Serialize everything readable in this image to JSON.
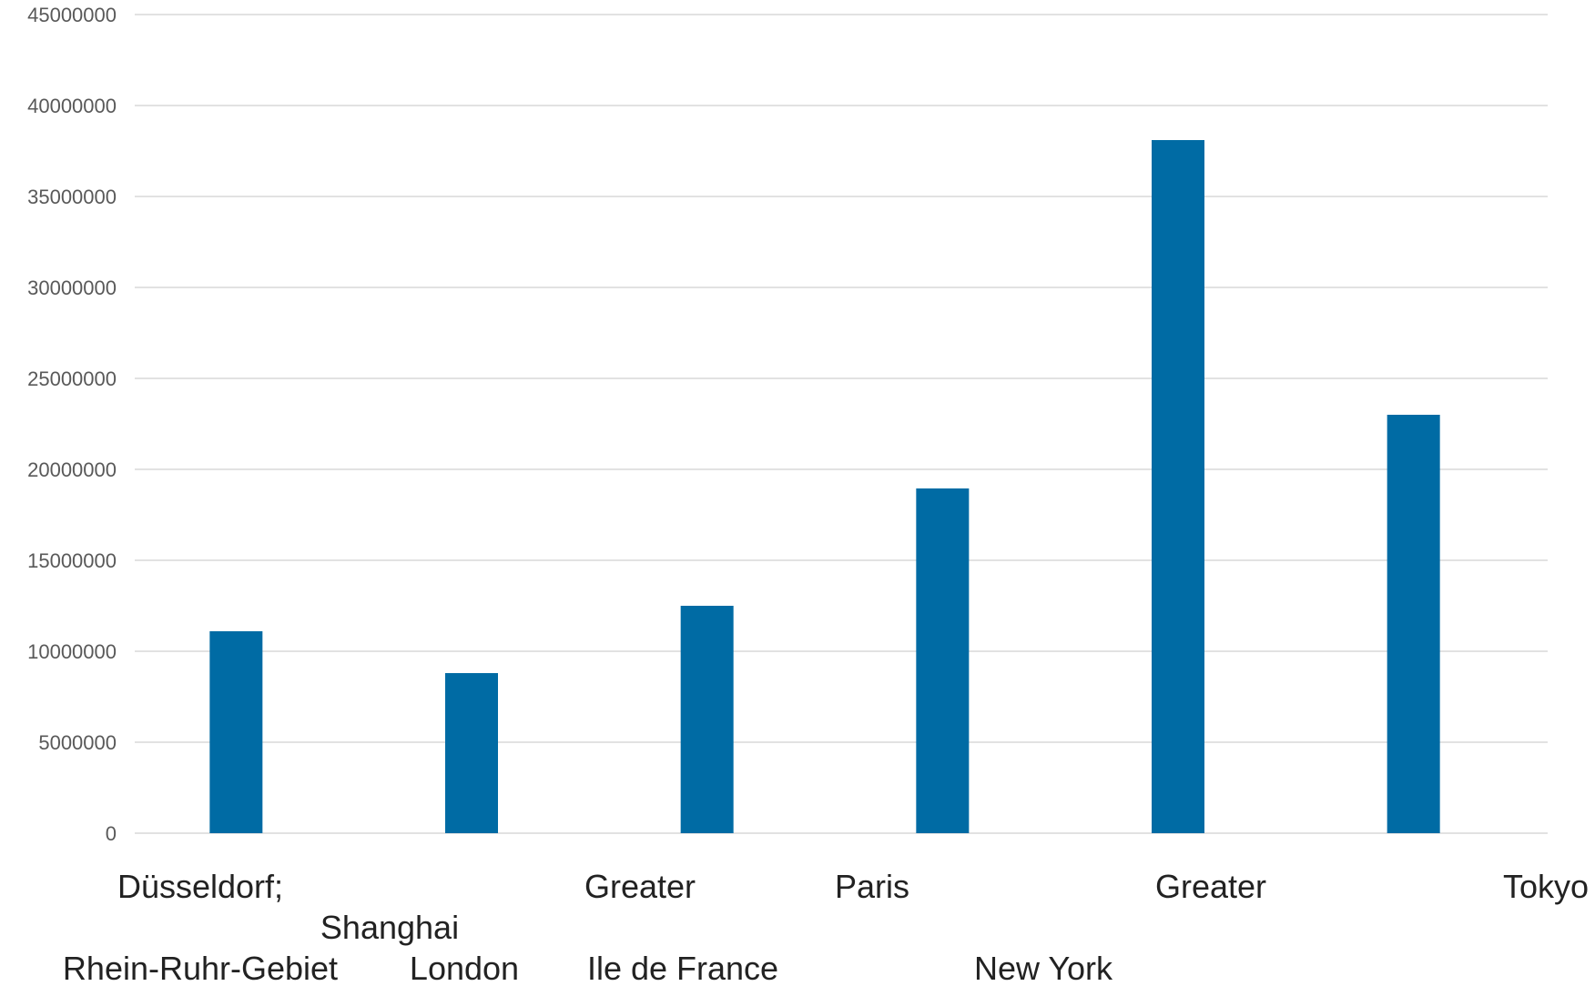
{
  "chart_data": {
    "type": "bar",
    "title": "",
    "xlabel": "",
    "ylabel": "",
    "ylim": [
      0,
      45000000
    ],
    "yticks": [
      0,
      5000000,
      10000000,
      15000000,
      20000000,
      25000000,
      30000000,
      35000000,
      40000000,
      45000000
    ],
    "grid": true,
    "legend": "none",
    "bar_color": "#006ba4",
    "categories": [
      "Düsseldorf; Rhein-Ruhr-Gebiet",
      "Shanghai London",
      "Greater Ile de France",
      "Paris New York",
      "Greater",
      "Tokyo"
    ],
    "values": [
      11100000,
      8800000,
      12500000,
      18950000,
      38100000,
      23000000
    ],
    "x_labels": [
      {
        "text": "Düsseldorf;",
        "line": 0
      },
      {
        "text": "Rhein-Ruhr-Gebiet",
        "line": 2
      },
      {
        "text": "Shanghai",
        "line": 1
      },
      {
        "text": "London",
        "line": 2
      },
      {
        "text": "Greater",
        "line": 0
      },
      {
        "text": "Ile de France",
        "line": 2
      },
      {
        "text": "Paris",
        "line": 0
      },
      {
        "text": "New York",
        "line": 2
      },
      {
        "text": "Greater",
        "line": 0
      },
      {
        "text": "Tokyo",
        "line": 0
      }
    ]
  }
}
